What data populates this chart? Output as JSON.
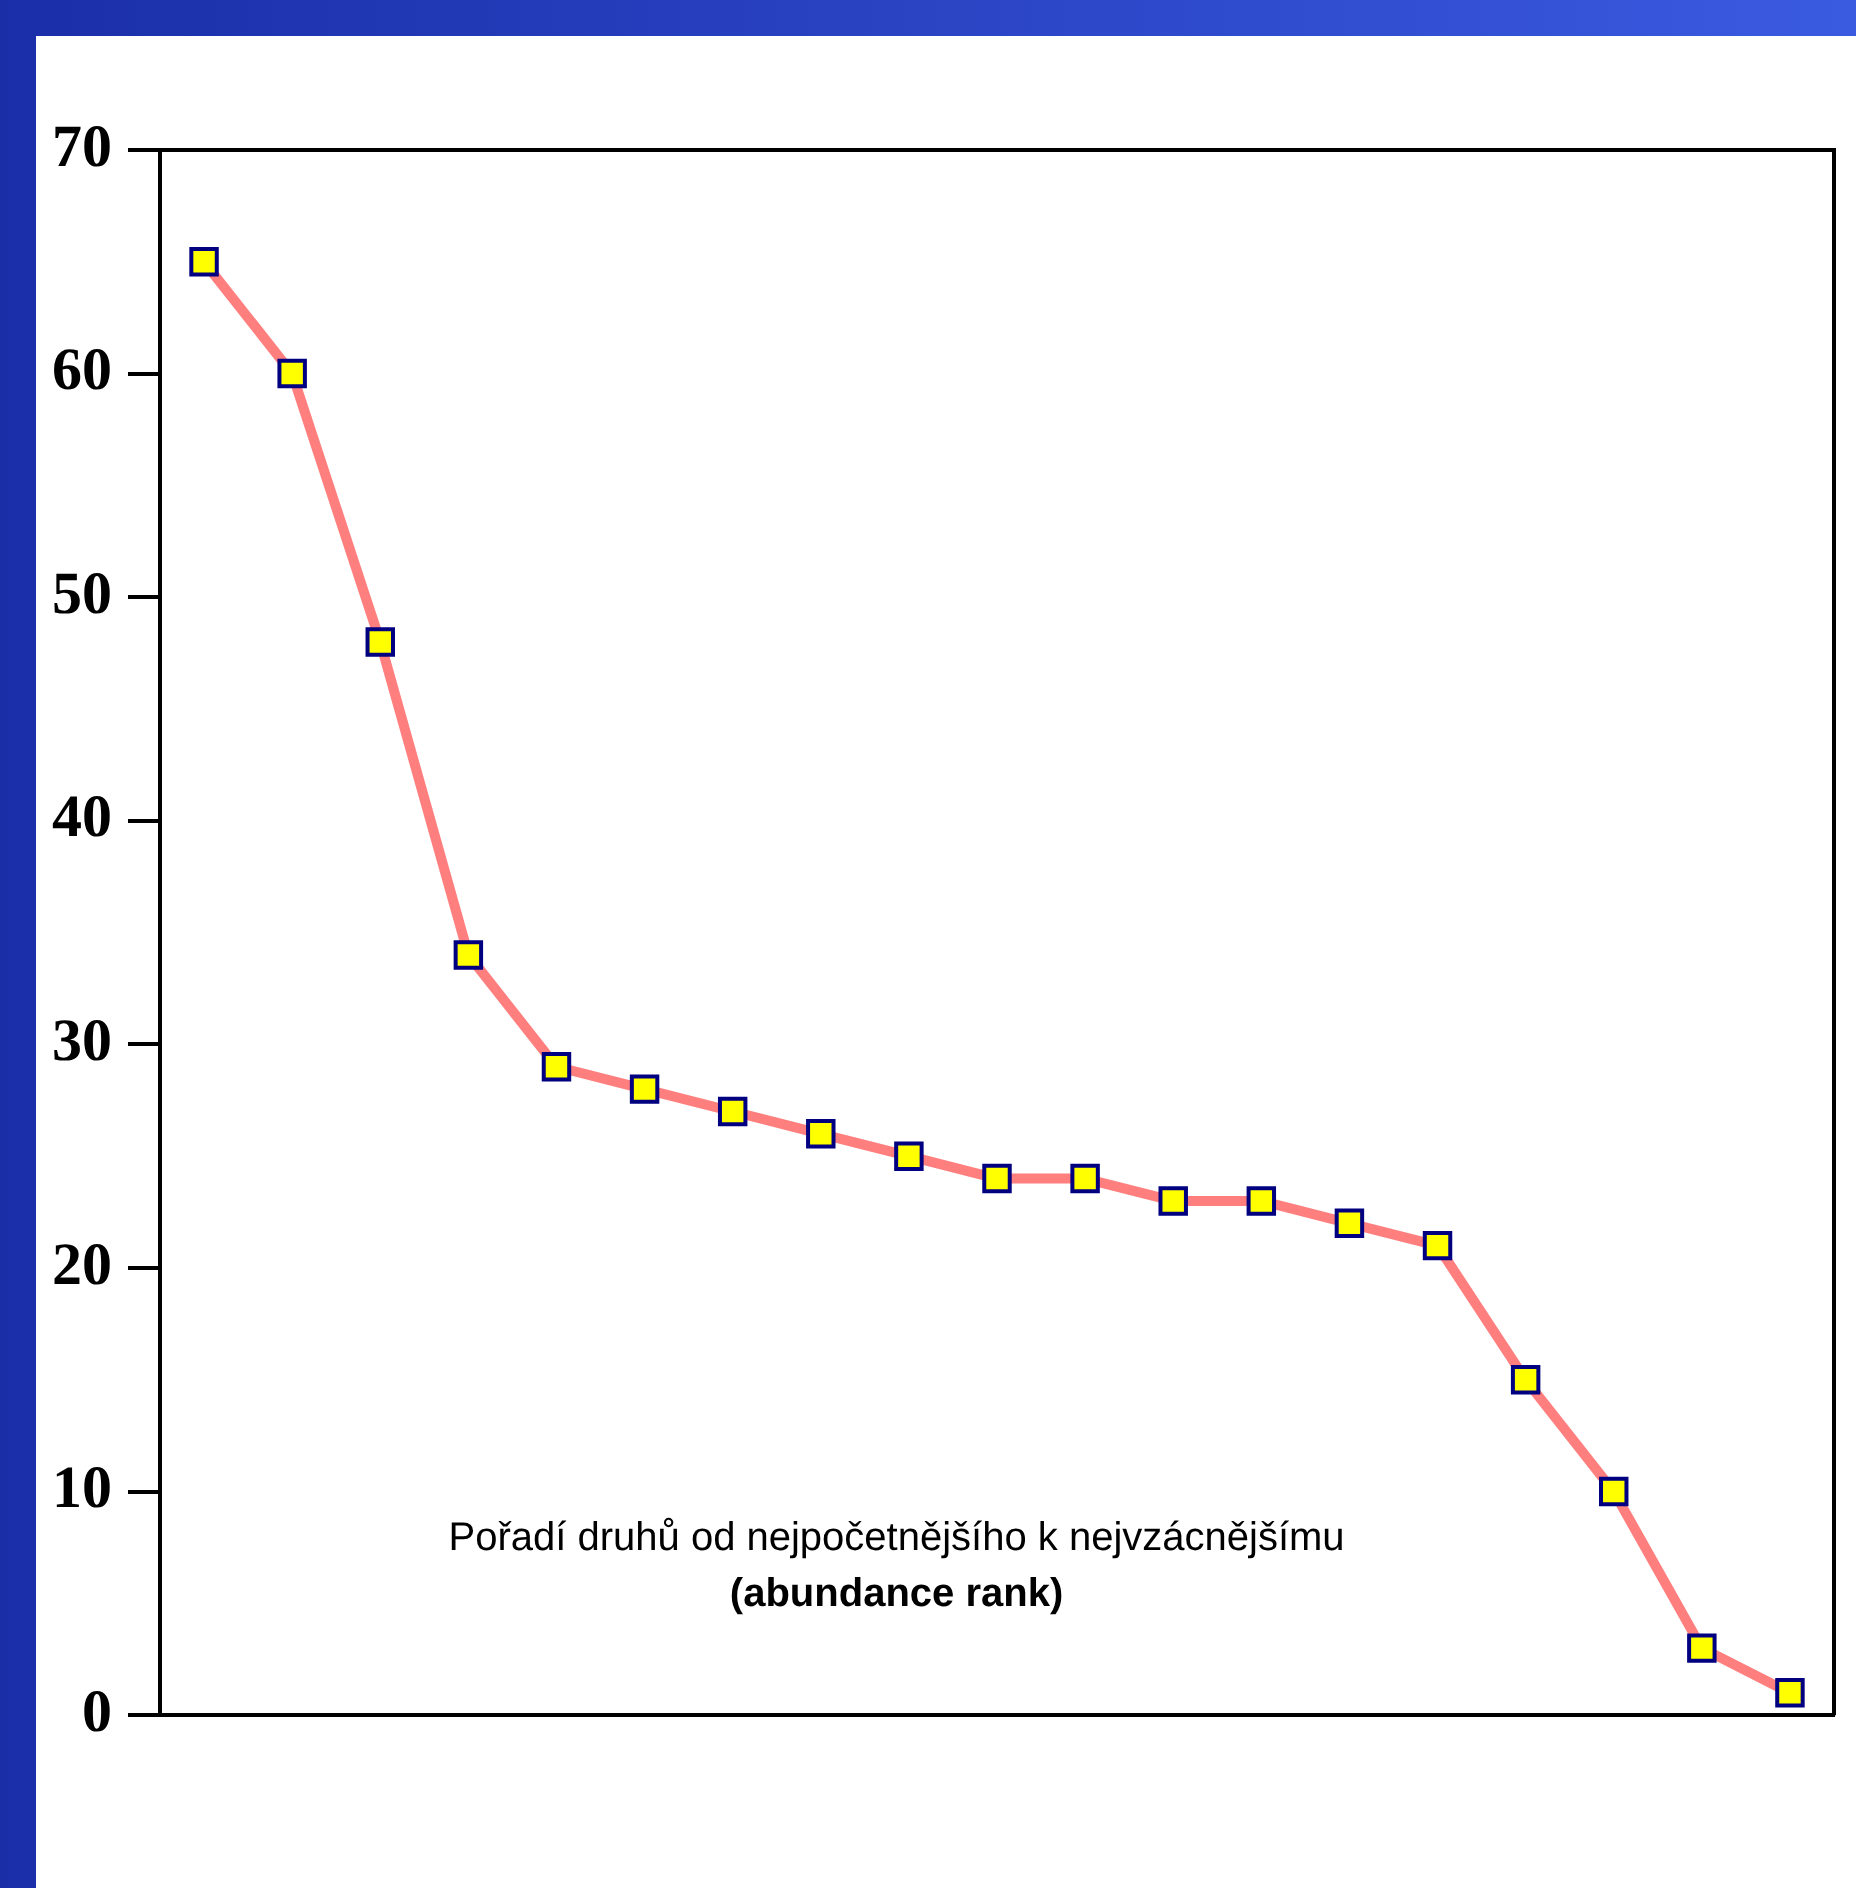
{
  "chart_data": {
    "type": "line",
    "categories": [
      null,
      null,
      null,
      null,
      null,
      null,
      null,
      null,
      null,
      null,
      null,
      null,
      null,
      null,
      null,
      null,
      null,
      null,
      null
    ],
    "series": [
      {
        "color": "#ff7f7f",
        "values": [
          65,
          60,
          48,
          34,
          29,
          28,
          27,
          26,
          25,
          24,
          24,
          23,
          23,
          22,
          21,
          15,
          10,
          3,
          1
        ]
      }
    ],
    "ylim": [
      0,
      70
    ],
    "yticks": [
      0,
      10,
      20,
      30,
      40,
      50,
      60,
      70
    ],
    "marker": "square",
    "line_style": "solid",
    "grid": false,
    "legend": false,
    "annotations": [
      "Pořadí druhů od nejpočetnějšího k nejvzácnějšímu",
      "(abundance rank)"
    ]
  }
}
